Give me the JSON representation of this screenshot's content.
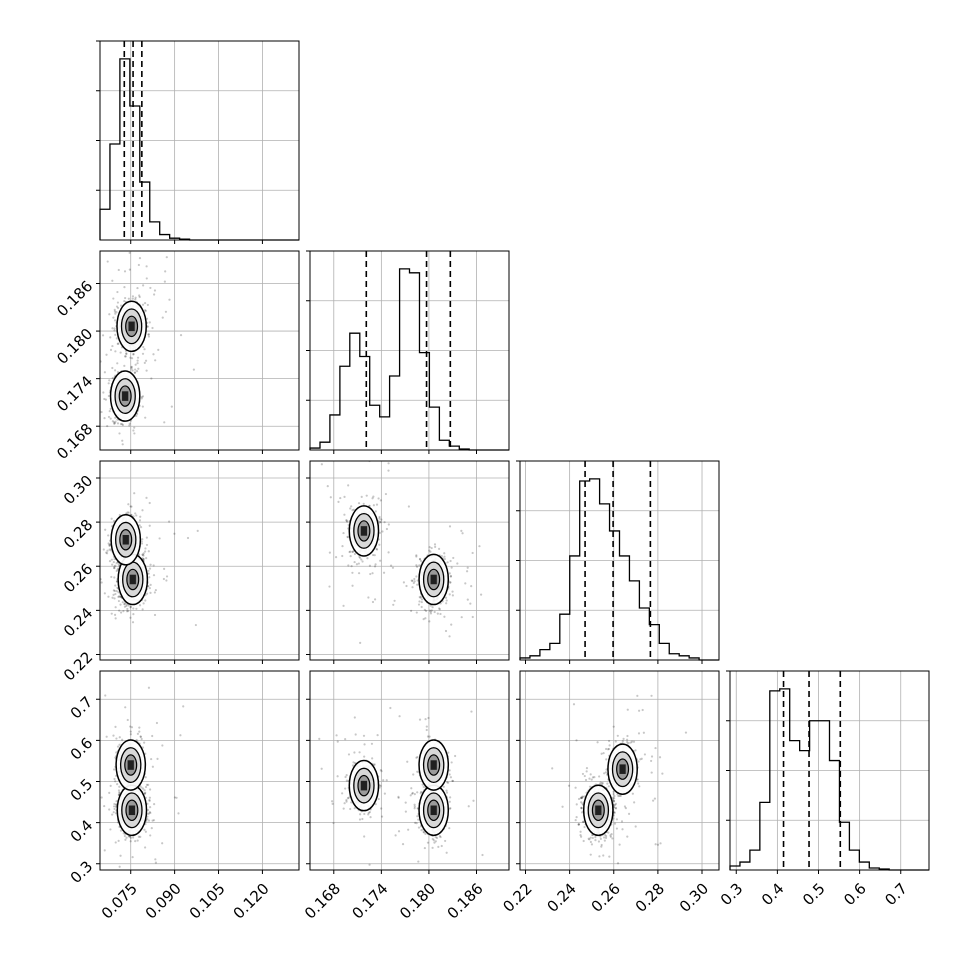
{
  "chart_data": {
    "type": "corner",
    "grid": true,
    "parameters": [
      {
        "index": 0,
        "ticks": [
          0.075,
          0.09,
          0.105,
          0.12
        ],
        "tick_labels": [
          "0.075",
          "0.090",
          "0.105",
          "0.120"
        ],
        "range": [
          0.0645,
          0.1325
        ]
      },
      {
        "index": 1,
        "ticks": [
          0.168,
          0.174,
          0.18,
          0.186
        ],
        "tick_labels": [
          "0.168",
          "0.174",
          "0.180",
          "0.186"
        ],
        "range": [
          0.165,
          0.1901
        ]
      },
      {
        "index": 2,
        "ticks": [
          0.22,
          0.24,
          0.26,
          0.28,
          0.3
        ],
        "tick_labels": [
          "0.22",
          "0.24",
          "0.26",
          "0.28",
          "0.30"
        ],
        "range": [
          0.2175,
          0.3077
        ]
      },
      {
        "index": 3,
        "ticks": [
          0.3,
          0.4,
          0.5,
          0.6,
          0.7
        ],
        "tick_labels": [
          "0.3",
          "0.4",
          "0.5",
          "0.6",
          "0.7"
        ],
        "range": [
          0.2848,
          0.7687
        ]
      }
    ],
    "histograms": [
      {
        "param": 0,
        "bin_edges": [
          0.0645,
          0.0679,
          0.0713,
          0.0747,
          0.0781,
          0.0815,
          0.0849,
          0.0883,
          0.0917,
          0.0951,
          0.0985,
          0.1019,
          0.1053,
          0.1087,
          0.1121,
          0.1155,
          0.1189,
          0.1223,
          0.1257,
          0.1291,
          0.1325
        ],
        "counts": [
          0.17,
          0.53,
          1.0,
          0.74,
          0.32,
          0.1,
          0.03,
          0.01,
          0.005,
          0,
          0,
          0,
          0,
          0,
          0,
          0,
          0,
          0,
          0,
          0
        ],
        "quantiles": [
          0.0728,
          0.0758,
          0.0788
        ]
      },
      {
        "param": 1,
        "bin_edges": [
          0.165,
          0.16626,
          0.16751,
          0.16877,
          0.17002,
          0.17128,
          0.17253,
          0.17379,
          0.17504,
          0.1763,
          0.17755,
          0.17881,
          0.18006,
          0.18132,
          0.18257,
          0.18383,
          0.18508,
          0.18634,
          0.18759,
          0.18885,
          0.1901
        ],
        "counts": [
          0.01,
          0.04,
          0.18,
          0.43,
          0.6,
          0.48,
          0.23,
          0.17,
          0.38,
          0.93,
          0.91,
          0.5,
          0.22,
          0.05,
          0.02,
          0.005,
          0,
          0,
          0,
          0
        ],
        "quantiles": [
          0.1721,
          0.1797,
          0.1827
        ]
      },
      {
        "param": 2,
        "bin_edges": [
          0.2175,
          0.22201,
          0.22652,
          0.23103,
          0.23554,
          0.24005,
          0.24456,
          0.24907,
          0.25358,
          0.25809,
          0.2626,
          0.26711,
          0.27162,
          0.27613,
          0.28064,
          0.28515,
          0.28966,
          0.29417,
          0.29868,
          0.30319,
          0.3077
        ],
        "counts": [
          0.01,
          0.02,
          0.05,
          0.08,
          0.22,
          0.5,
          0.86,
          0.87,
          0.75,
          0.62,
          0.5,
          0.38,
          0.25,
          0.17,
          0.08,
          0.03,
          0.02,
          0.01,
          0,
          0
        ],
        "quantiles": [
          0.247,
          0.2597,
          0.2766
        ]
      },
      {
        "param": 3,
        "bin_edges": [
          0.2848,
          0.309,
          0.33319,
          0.35739,
          0.38158,
          0.40578,
          0.42997,
          0.45417,
          0.47836,
          0.50256,
          0.52675,
          0.55095,
          0.57514,
          0.59934,
          0.62353,
          0.64773,
          0.67192,
          0.69612,
          0.72031,
          0.74451,
          0.7687
        ],
        "counts": [
          0.02,
          0.04,
          0.1,
          0.34,
          0.9,
          0.91,
          0.65,
          0.6,
          0.75,
          0.75,
          0.55,
          0.24,
          0.1,
          0.04,
          0.01,
          0.005,
          0,
          0,
          0,
          0
        ],
        "quantiles": [
          0.415,
          0.477,
          0.553
        ]
      }
    ],
    "density_panels": [
      {
        "row": 1,
        "col": 0,
        "modes": [
          {
            "x": 0.0753,
            "y": 0.1806,
            "w": 0.6
          },
          {
            "x": 0.0731,
            "y": 0.1718,
            "w": 0.4
          }
        ]
      },
      {
        "row": 2,
        "col": 0,
        "modes": [
          {
            "x": 0.0757,
            "y": 0.254,
            "w": 0.6
          },
          {
            "x": 0.0733,
            "y": 0.272,
            "w": 0.4
          }
        ]
      },
      {
        "row": 2,
        "col": 1,
        "modes": [
          {
            "x": 0.1806,
            "y": 0.254,
            "w": 0.6
          },
          {
            "x": 0.1718,
            "y": 0.276,
            "w": 0.4
          }
        ]
      },
      {
        "row": 3,
        "col": 0,
        "modes": [
          {
            "x": 0.0754,
            "y": 0.43,
            "w": 0.6
          },
          {
            "x": 0.075,
            "y": 0.54,
            "w": 0.4
          }
        ]
      },
      {
        "row": 3,
        "col": 1,
        "modes": [
          {
            "x": 0.1806,
            "y": 0.43,
            "w": 0.35
          },
          {
            "x": 0.1806,
            "y": 0.54,
            "w": 0.25
          },
          {
            "x": 0.1718,
            "y": 0.49,
            "w": 0.4
          }
        ]
      },
      {
        "row": 3,
        "col": 2,
        "modes": [
          {
            "x": 0.253,
            "y": 0.43,
            "w": 0.6
          },
          {
            "x": 0.264,
            "y": 0.53,
            "w": 0.4
          }
        ]
      }
    ]
  },
  "colors": {
    "axis": "#000000",
    "grid": "#b0b0b0",
    "points": "#000000",
    "background": "#ffffff"
  }
}
